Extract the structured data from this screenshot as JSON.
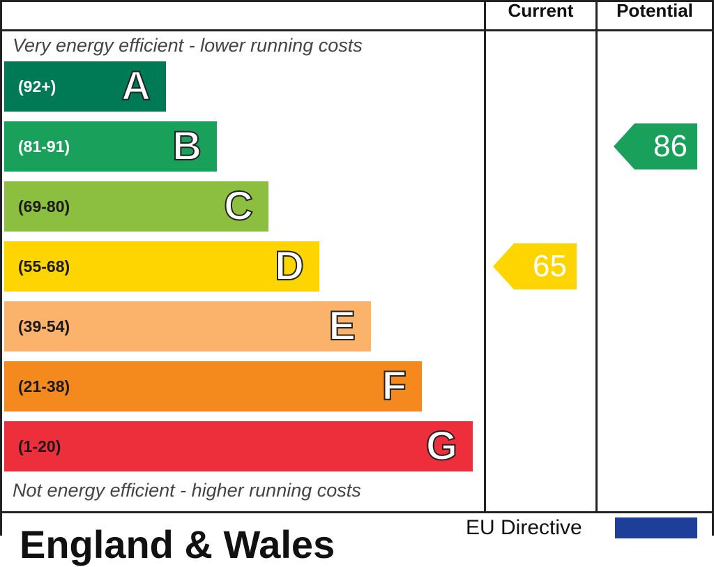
{
  "header": {
    "current_label": "Current",
    "potential_label": "Potential"
  },
  "captions": {
    "top": "Very energy efficient - lower running costs",
    "bottom": "Not energy efficient - higher running costs"
  },
  "chart_data": {
    "type": "bar",
    "bands": [
      {
        "letter": "A",
        "range": "(92+)",
        "color": "#007a55"
      },
      {
        "letter": "B",
        "range": "(81-91)",
        "color": "#19a05a"
      },
      {
        "letter": "C",
        "range": "(69-80)",
        "color": "#8cbf3f"
      },
      {
        "letter": "D",
        "range": "(55-68)",
        "color": "#ffd500"
      },
      {
        "letter": "E",
        "range": "(39-54)",
        "color": "#fbb36b"
      },
      {
        "letter": "F",
        "range": "(21-38)",
        "color": "#f48a1e"
      },
      {
        "letter": "G",
        "range": "(1-20)",
        "color": "#ed2f3b"
      }
    ],
    "current": {
      "value": "65",
      "band": "D",
      "color": "#ffd500"
    },
    "potential": {
      "value": "86",
      "band": "B",
      "color": "#19a05a"
    }
  },
  "footer": {
    "region": "England & Wales",
    "eu_label": "EU Directive"
  }
}
